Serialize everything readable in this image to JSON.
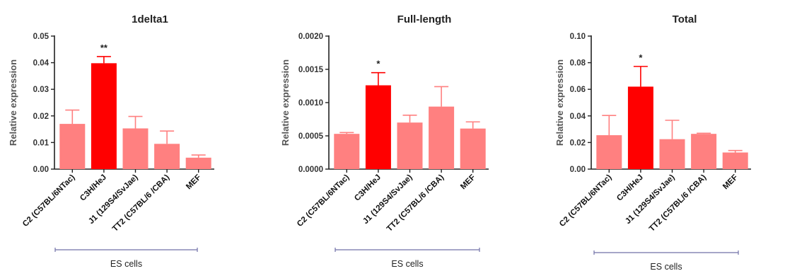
{
  "chart_data": [
    {
      "type": "bar",
      "title": "1delta1",
      "ylabel": "Relative expression",
      "xlabel": "",
      "ylim": [
        0,
        0.05
      ],
      "yticks": [
        "0.00",
        "0.01",
        "0.02",
        "0.03",
        "0.04",
        "0.05"
      ],
      "categories": [
        "C2 (C57BL/6NTac)",
        "C3H/HeJ",
        "J1 (129S4/SvJae)",
        "TT2 (C57BL/6 /CBA)",
        "MEF"
      ],
      "values": [
        0.017,
        0.0398,
        0.0153,
        0.0095,
        0.0043
      ],
      "errors": [
        0.0052,
        0.0025,
        0.0045,
        0.0048,
        0.001
      ],
      "annotations": [
        "",
        "**",
        "",
        "",
        ""
      ],
      "colors": [
        "#ff8080",
        "#ff0000",
        "#ff8080",
        "#ff8080",
        "#ff8080"
      ],
      "group_label": "ES cells",
      "group_span": [
        0,
        3
      ]
    },
    {
      "type": "bar",
      "title": "Full-length",
      "ylabel": "Relative expression",
      "xlabel": "",
      "ylim": [
        0,
        0.002
      ],
      "yticks": [
        "0.0000",
        "0.0005",
        "0.0010",
        "0.0015",
        "0.0020"
      ],
      "categories": [
        "C2 (C57BL/6NTac)",
        "C3H/HeJ",
        "J1 (129S4/SvJae)",
        "TT2 (C57BL/6 /CBA)",
        "MEF"
      ],
      "values": [
        0.00053,
        0.00126,
        0.0007,
        0.00094,
        0.00061
      ],
      "errors": [
        2e-05,
        0.00019,
        0.00011,
        0.0003,
        0.0001
      ],
      "annotations": [
        "",
        "*",
        "",
        "",
        ""
      ],
      "colors": [
        "#ff8080",
        "#ff0000",
        "#ff8080",
        "#ff8080",
        "#ff8080"
      ],
      "group_label": "ES cells",
      "group_span": [
        0,
        3
      ]
    },
    {
      "type": "bar",
      "title": "Total",
      "ylabel": "Relative expression",
      "xlabel": "",
      "ylim": [
        0,
        0.1
      ],
      "yticks": [
        "0.00",
        "0.02",
        "0.04",
        "0.06",
        "0.08",
        "0.10"
      ],
      "categories": [
        "C2 (C57BL/6NTac)",
        "C3H/HeJ",
        "J1 (129S4/SvJae)",
        "TT2 (C57BL/6 /CBA)",
        "MEF"
      ],
      "values": [
        0.0255,
        0.062,
        0.0225,
        0.0265,
        0.0125
      ],
      "errors": [
        0.0148,
        0.0152,
        0.0142,
        0.0005,
        0.0015
      ],
      "annotations": [
        "",
        "*",
        "",
        "",
        ""
      ],
      "colors": [
        "#ff8080",
        "#ff0000",
        "#ff8080",
        "#ff8080",
        "#ff8080"
      ],
      "group_label": "ES cells",
      "group_span": [
        0,
        3
      ]
    }
  ]
}
